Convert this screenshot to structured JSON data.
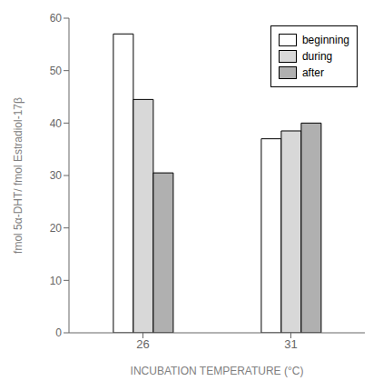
{
  "chart_data": {
    "type": "bar",
    "categories": [
      "26",
      "31"
    ],
    "series": [
      {
        "name": "beginning",
        "color": "#ffffff",
        "values": [
          57.0,
          37.0
        ]
      },
      {
        "name": "during",
        "color": "#d8d8d8",
        "values": [
          44.5,
          38.5
        ]
      },
      {
        "name": "after",
        "color": "#b0b0b0",
        "values": [
          30.5,
          40.0
        ]
      }
    ],
    "xlabel": "INCUBATION TEMPERATURE (°C)",
    "ylabel": "fmol 5α-DHT/ fmol Estradiol-17β",
    "ylim": [
      0,
      60
    ],
    "yticks": [
      0,
      10,
      20,
      30,
      40,
      50,
      60
    ],
    "grid": false,
    "legend": "upper right"
  }
}
